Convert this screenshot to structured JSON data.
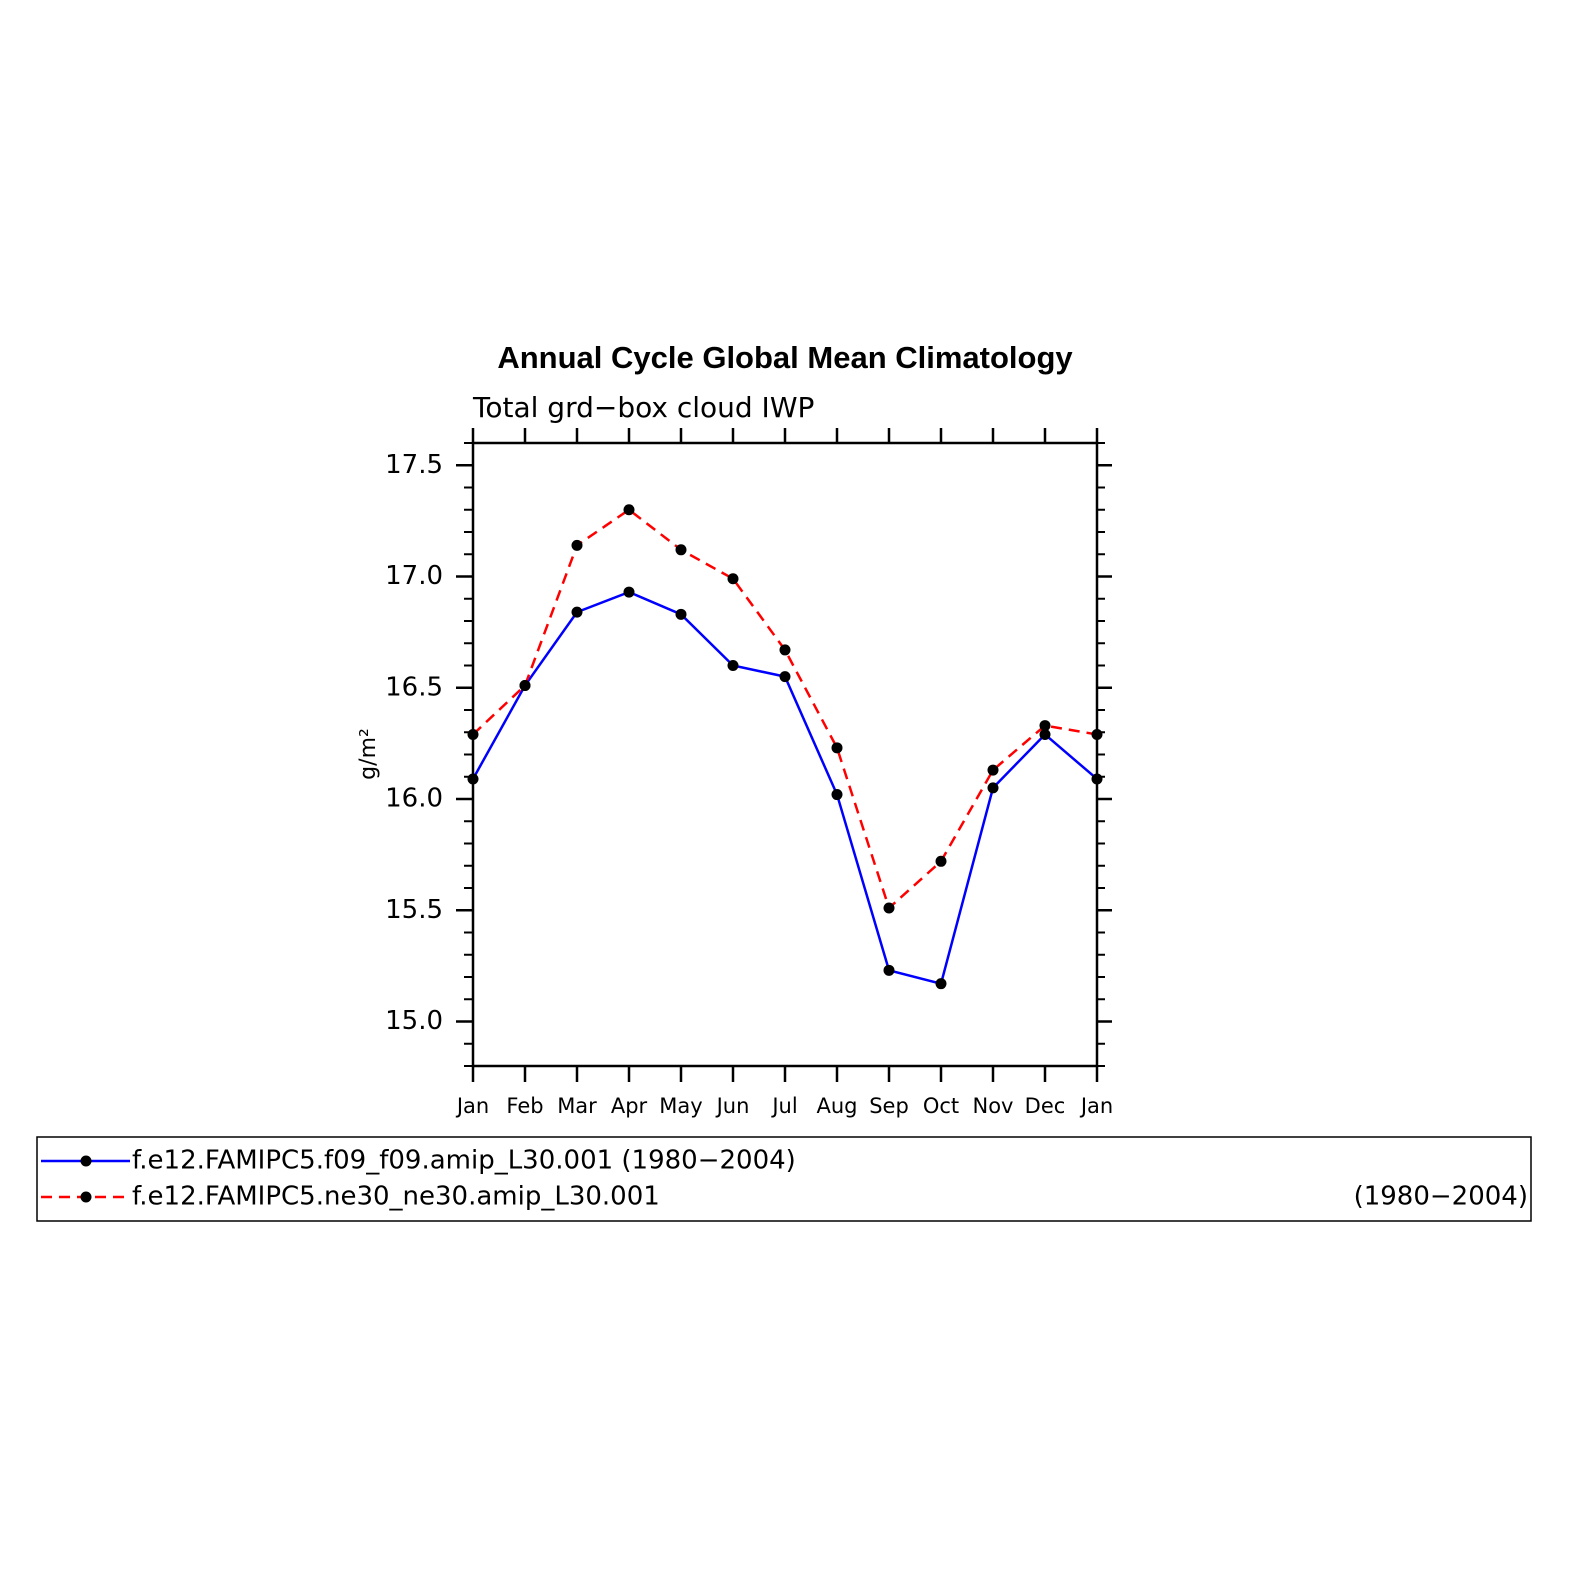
{
  "chart_data": {
    "type": "line",
    "title": "Annual Cycle Global Mean Climatology",
    "subtitle": "Total grd−box cloud IWP",
    "y_label": "g/m²",
    "categories": [
      "Jan",
      "Feb",
      "Mar",
      "Apr",
      "May",
      "Jun",
      "Jul",
      "Aug",
      "Sep",
      "Oct",
      "Nov",
      "Dec",
      "Jan"
    ],
    "series": [
      {
        "name": "f.e12.FAMIPC5.f09_f09.amip_L30.001 (1980−2004)",
        "color": "#0000ff",
        "dash": false,
        "values": [
          16.09,
          16.51,
          16.84,
          16.93,
          16.83,
          16.6,
          16.55,
          16.02,
          15.23,
          15.17,
          16.05,
          16.29,
          16.09
        ]
      },
      {
        "name": "f.e12.FAMIPC5.ne30_ne30.amip_L30.001",
        "period": "(1980−2004)",
        "color": "#ff0000",
        "dash": true,
        "values": [
          16.29,
          16.51,
          17.14,
          17.3,
          17.12,
          16.99,
          16.67,
          16.23,
          15.51,
          15.72,
          16.13,
          16.33,
          16.29
        ]
      }
    ],
    "ylim": [
      14.8,
      17.6
    ],
    "yticks": [
      {
        "value": 15,
        "label": "15.0"
      },
      15.5,
      {
        "value": 16,
        "label": "16.0"
      },
      16.5,
      {
        "value": 17,
        "label": "17.0"
      },
      17.5
    ],
    "yminorticks": [
      14.8,
      14.9,
      15.1,
      15.2,
      15.3,
      15.4,
      15.6,
      15.7,
      15.8,
      15.9,
      16.1,
      16.2,
      16.3,
      16.4,
      16.6,
      16.7,
      16.8,
      16.9,
      17.1,
      17.2,
      17.3,
      17.4,
      17.6
    ],
    "marker_color": "#000000"
  }
}
